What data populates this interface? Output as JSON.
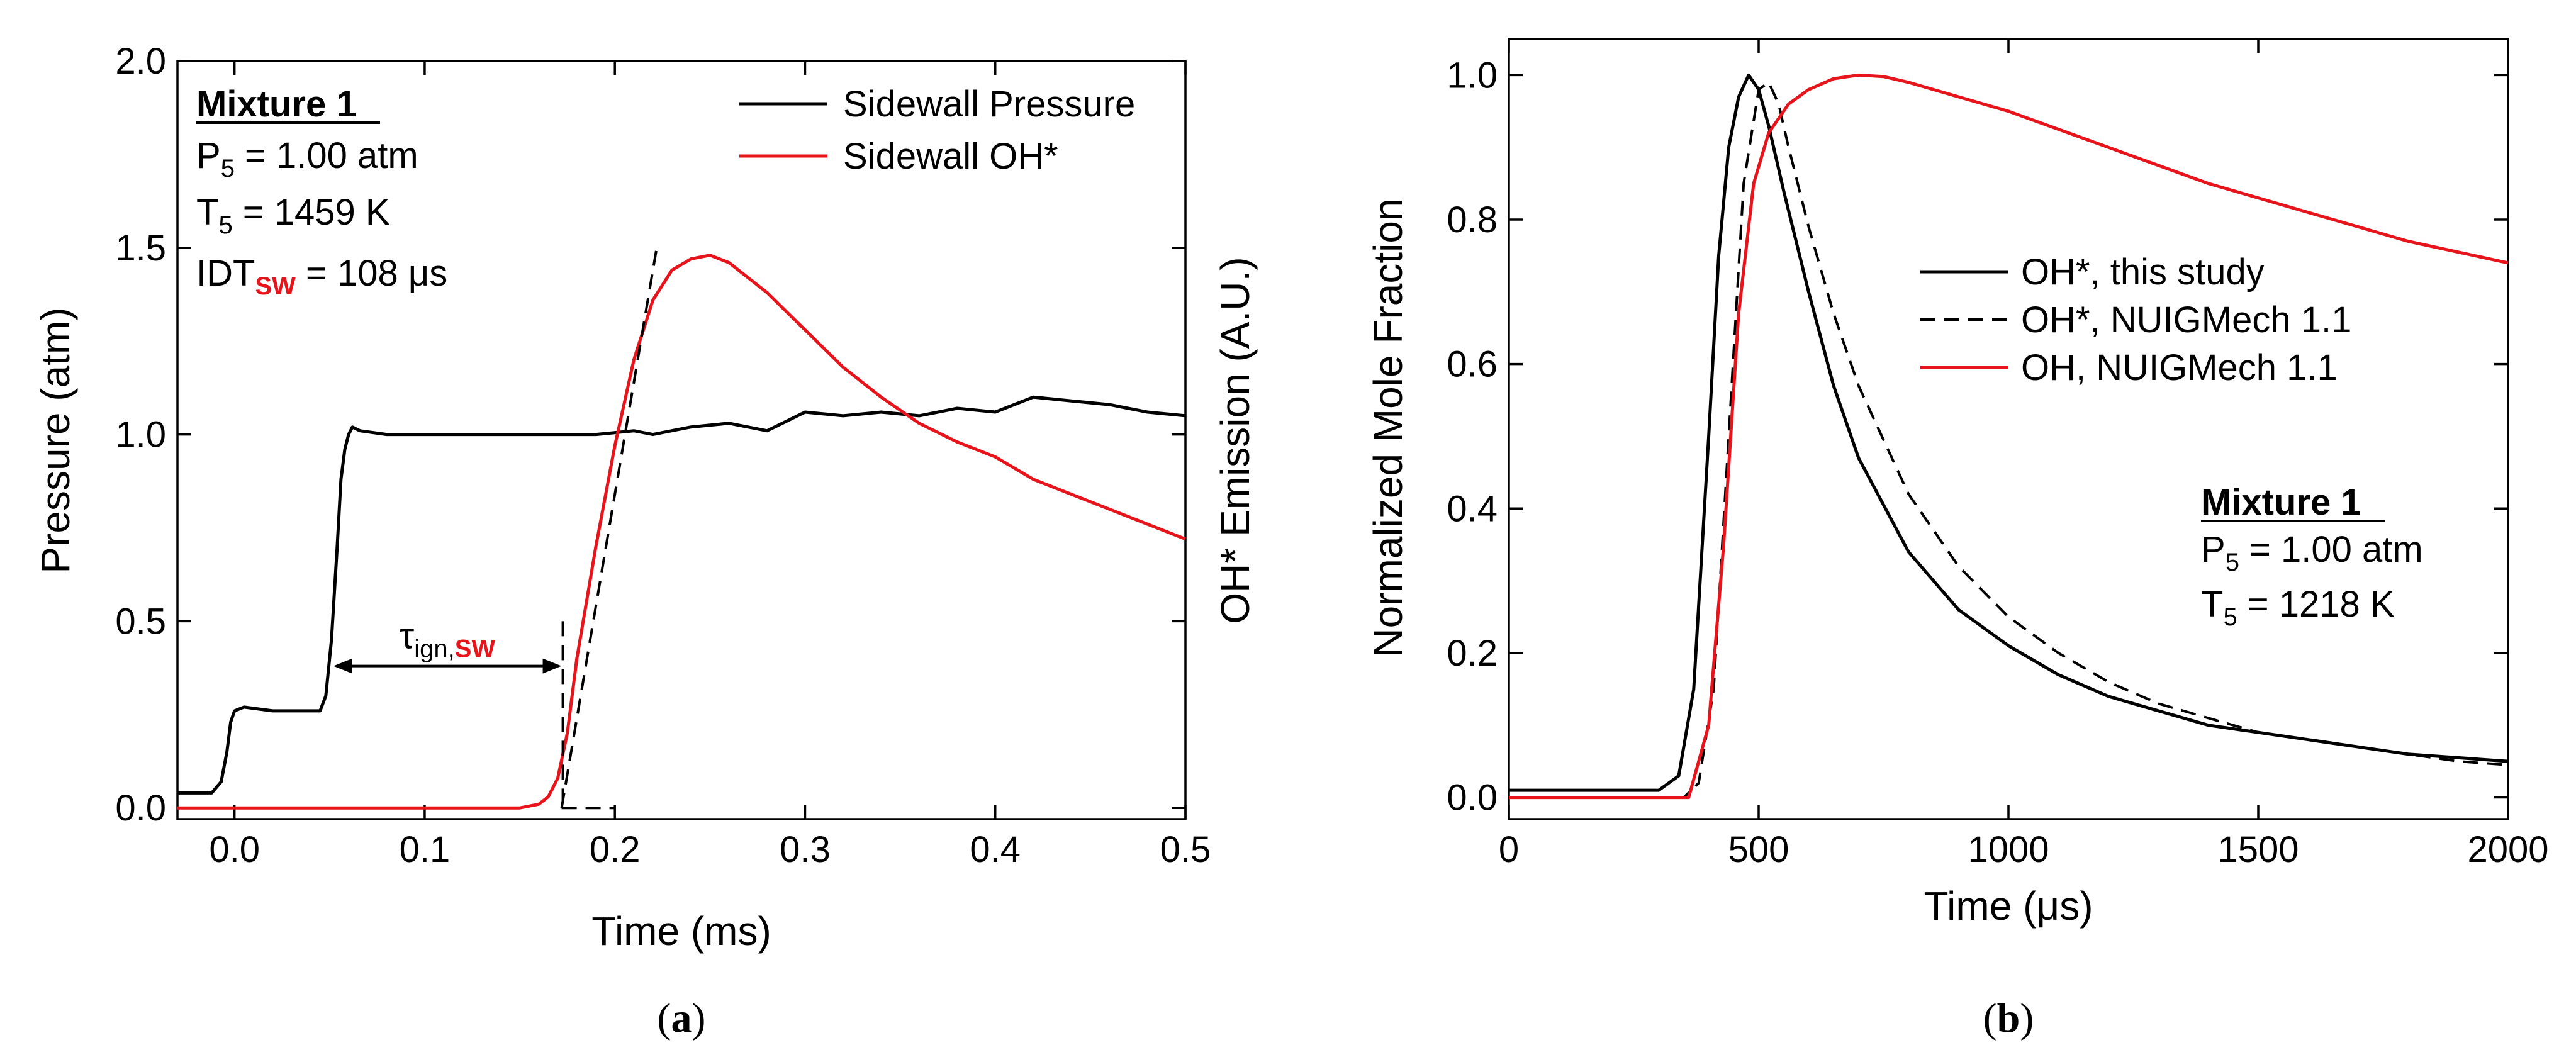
{
  "chart_data": [
    {
      "type": "line",
      "panel": "a",
      "caption": "a",
      "xlabel": "Time (ms)",
      "ylabel": "Pressure (atm)",
      "ylabel_right": "OH* Emission (A.U.)",
      "xlim": [
        -0.03,
        0.5
      ],
      "ylim": [
        -0.03,
        2.0
      ],
      "xticks": [
        "0.0",
        "0.1",
        "0.2",
        "0.3",
        "0.4",
        "0.5"
      ],
      "xtick_values": [
        0.0,
        0.1,
        0.2,
        0.3,
        0.4,
        0.5
      ],
      "yticks": [
        "0.0",
        "0.5",
        "1.0",
        "1.5",
        "2.0"
      ],
      "ytick_values": [
        0.0,
        0.5,
        1.0,
        1.5,
        2.0
      ],
      "legend": [
        "Sidewall Pressure",
        "Sidewall OH*"
      ],
      "legend_position": "top-right",
      "mixture": {
        "title": "Mixture 1",
        "p_label": "P",
        "p_sub": "5",
        "p_value": " = 1.00 atm",
        "t_label": "T",
        "t_sub": "5",
        "t_value": " = 1459 K",
        "idt_label": "IDT",
        "idt_sub": "SW",
        "idt_value": " = 108 μs"
      },
      "tau_label": "τ",
      "tau_sub": "ign,",
      "tau_sub_sw": "SW",
      "series": [
        {
          "name": "Sidewall Pressure",
          "color": "#000000",
          "style": "solid",
          "x": [
            -0.03,
            -0.012,
            -0.007,
            -0.004,
            -0.002,
            0.0,
            0.005,
            0.02,
            0.035,
            0.045,
            0.048,
            0.051,
            0.054,
            0.056,
            0.058,
            0.06,
            0.062,
            0.066,
            0.08,
            0.1,
            0.13,
            0.16,
            0.19,
            0.21,
            0.22,
            0.24,
            0.26,
            0.28,
            0.3,
            0.32,
            0.34,
            0.36,
            0.38,
            0.4,
            0.42,
            0.44,
            0.46,
            0.48,
            0.5
          ],
          "y": [
            0.04,
            0.04,
            0.07,
            0.15,
            0.23,
            0.26,
            0.27,
            0.26,
            0.26,
            0.26,
            0.3,
            0.45,
            0.7,
            0.88,
            0.96,
            1.0,
            1.02,
            1.01,
            1.0,
            1.0,
            1.0,
            1.0,
            1.0,
            1.01,
            1.0,
            1.02,
            1.03,
            1.01,
            1.06,
            1.05,
            1.06,
            1.05,
            1.07,
            1.06,
            1.1,
            1.09,
            1.08,
            1.06,
            1.05
          ]
        },
        {
          "name": "Sidewall OH*",
          "color": "#e8141b",
          "style": "solid",
          "x": [
            -0.03,
            0.0,
            0.05,
            0.1,
            0.15,
            0.16,
            0.165,
            0.17,
            0.175,
            0.18,
            0.19,
            0.2,
            0.21,
            0.22,
            0.23,
            0.24,
            0.25,
            0.26,
            0.27,
            0.28,
            0.29,
            0.3,
            0.32,
            0.34,
            0.36,
            0.38,
            0.4,
            0.42,
            0.44,
            0.46,
            0.48,
            0.5
          ],
          "y": [
            0.0,
            0.0,
            0.0,
            0.0,
            0.0,
            0.01,
            0.03,
            0.08,
            0.2,
            0.4,
            0.7,
            0.97,
            1.2,
            1.36,
            1.44,
            1.47,
            1.48,
            1.46,
            1.42,
            1.38,
            1.33,
            1.28,
            1.18,
            1.1,
            1.03,
            0.98,
            0.94,
            0.88,
            0.84,
            0.8,
            0.76,
            0.72
          ]
        },
        {
          "name": "Extrapolation (dashed)",
          "color": "#000000",
          "style": "dashed",
          "x": [
            0.172,
            0.222
          ],
          "y": [
            0.0,
            1.5
          ]
        },
        {
          "name": "Baseline (dashed)",
          "color": "#000000",
          "style": "dashed",
          "x": [
            0.172,
            0.2
          ],
          "y": [
            0.0,
            0.0
          ]
        }
      ]
    },
    {
      "type": "line",
      "panel": "b",
      "caption": "b",
      "xlabel": "Time (μs)",
      "ylabel": "Normalized Mole Fraction",
      "xlim": [
        0,
        2000
      ],
      "ylim": [
        -0.03,
        1.05
      ],
      "xticks": [
        "0",
        "500",
        "1000",
        "1500",
        "2000"
      ],
      "xtick_values": [
        0,
        500,
        1000,
        1500,
        2000
      ],
      "yticks": [
        "0.0",
        "0.2",
        "0.4",
        "0.6",
        "0.8",
        "1.0"
      ],
      "ytick_values": [
        0.0,
        0.2,
        0.4,
        0.6,
        0.8,
        1.0
      ],
      "legend": [
        "OH*, this study",
        "OH*, NUIGMech 1.1",
        "OH, NUIGMech 1.1"
      ],
      "legend_position": "center-right",
      "mixture": {
        "title": "Mixture 1",
        "p_label": "P",
        "p_sub": "5",
        "p_value": " = 1.00 atm",
        "t_label": "T",
        "t_sub": "5",
        "t_value": " = 1218 K"
      },
      "series": [
        {
          "name": "OH*, this study",
          "color": "#000000",
          "style": "solid",
          "x": [
            0,
            300,
            340,
            370,
            400,
            420,
            440,
            460,
            480,
            500,
            520,
            550,
            600,
            650,
            700,
            800,
            900,
            1000,
            1100,
            1200,
            1300,
            1400,
            1500,
            1600,
            1700,
            1800,
            1900,
            2000
          ],
          "y": [
            0.01,
            0.01,
            0.03,
            0.15,
            0.5,
            0.75,
            0.9,
            0.97,
            1.0,
            0.98,
            0.93,
            0.84,
            0.7,
            0.57,
            0.47,
            0.34,
            0.26,
            0.21,
            0.17,
            0.14,
            0.12,
            0.1,
            0.09,
            0.08,
            0.07,
            0.06,
            0.055,
            0.05
          ]
        },
        {
          "name": "OH*, NUIGMech 1.1",
          "color": "#000000",
          "style": "dashed",
          "x": [
            0,
            350,
            380,
            410,
            440,
            470,
            500,
            520,
            540,
            560,
            600,
            650,
            700,
            800,
            900,
            1000,
            1100,
            1200,
            1300,
            1400,
            1500,
            1600,
            1700,
            1800,
            1900,
            2000
          ],
          "y": [
            0.0,
            0.0,
            0.02,
            0.15,
            0.5,
            0.85,
            0.98,
            0.99,
            0.96,
            0.9,
            0.79,
            0.67,
            0.57,
            0.42,
            0.32,
            0.25,
            0.2,
            0.16,
            0.13,
            0.11,
            0.09,
            0.08,
            0.07,
            0.06,
            0.05,
            0.045
          ]
        },
        {
          "name": "OH, NUIGMech 1.1",
          "color": "#e8141b",
          "style": "solid",
          "x": [
            0,
            360,
            400,
            430,
            460,
            490,
            520,
            560,
            600,
            650,
            700,
            750,
            800,
            900,
            1000,
            1100,
            1200,
            1300,
            1400,
            1500,
            1600,
            1700,
            1800,
            1900,
            2000
          ],
          "y": [
            0.0,
            0.0,
            0.1,
            0.35,
            0.67,
            0.85,
            0.92,
            0.96,
            0.98,
            0.995,
            1.0,
            0.998,
            0.99,
            0.97,
            0.95,
            0.925,
            0.9,
            0.875,
            0.85,
            0.83,
            0.81,
            0.79,
            0.77,
            0.755,
            0.74
          ]
        }
      ]
    }
  ]
}
